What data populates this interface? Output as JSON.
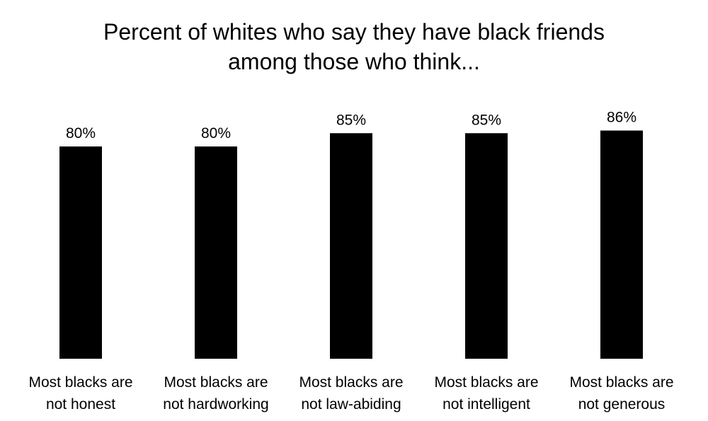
{
  "chart_data": {
    "type": "bar",
    "title": "Percent of whites who say they have black friends\namong those who think...",
    "categories": [
      [
        "Most blacks are",
        "not honest"
      ],
      [
        "Most blacks are",
        "not hardworking"
      ],
      [
        "Most blacks are",
        "not law-abiding"
      ],
      [
        "Most blacks are",
        "not intelligent"
      ],
      [
        "Most blacks are",
        "not generous"
      ]
    ],
    "values": [
      80,
      80,
      85,
      85,
      86
    ],
    "data_labels": [
      "80%",
      "80%",
      "85%",
      "85%",
      "86%"
    ],
    "bar_color": "#000000",
    "grid": false,
    "legend": "none",
    "axes_visible": false
  }
}
